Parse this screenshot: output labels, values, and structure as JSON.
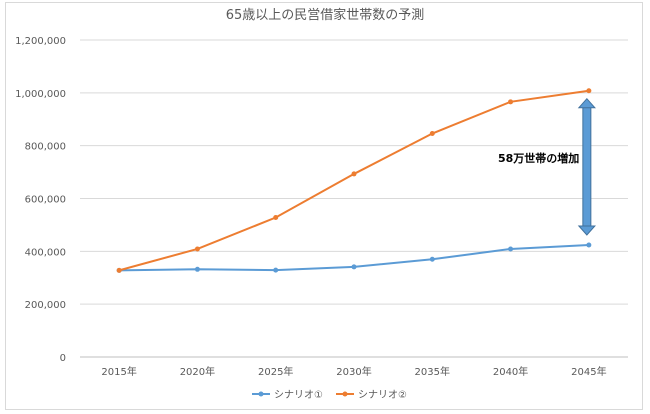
{
  "chart_data": {
    "type": "line",
    "title": "65歳以上の民営借家世帯数の予測",
    "categories": [
      "2015年",
      "2020年",
      "2025年",
      "2030年",
      "2035年",
      "2040年",
      "2045年"
    ],
    "series": [
      {
        "name": "シナリオ①",
        "color": "#5b9bd5",
        "values": [
          328000,
          332000,
          329000,
          341000,
          370000,
          409000,
          424000
        ]
      },
      {
        "name": "シナリオ②",
        "color": "#ed7d31",
        "values": [
          328000,
          409000,
          528000,
          693000,
          846000,
          966000,
          1008000
        ]
      }
    ],
    "ylim": [
      0,
      1200000
    ],
    "yticks": [
      "0",
      "200,000",
      "400,000",
      "600,000",
      "800,000",
      "1,000,000",
      "1,200,000"
    ],
    "ytick_values": [
      0,
      200000,
      400000,
      600000,
      800000,
      1000000,
      1200000
    ],
    "grid": true,
    "legend_position": "bottom",
    "annotation": {
      "text": "58万世帯の増加",
      "color": "#5b9bd5"
    }
  }
}
